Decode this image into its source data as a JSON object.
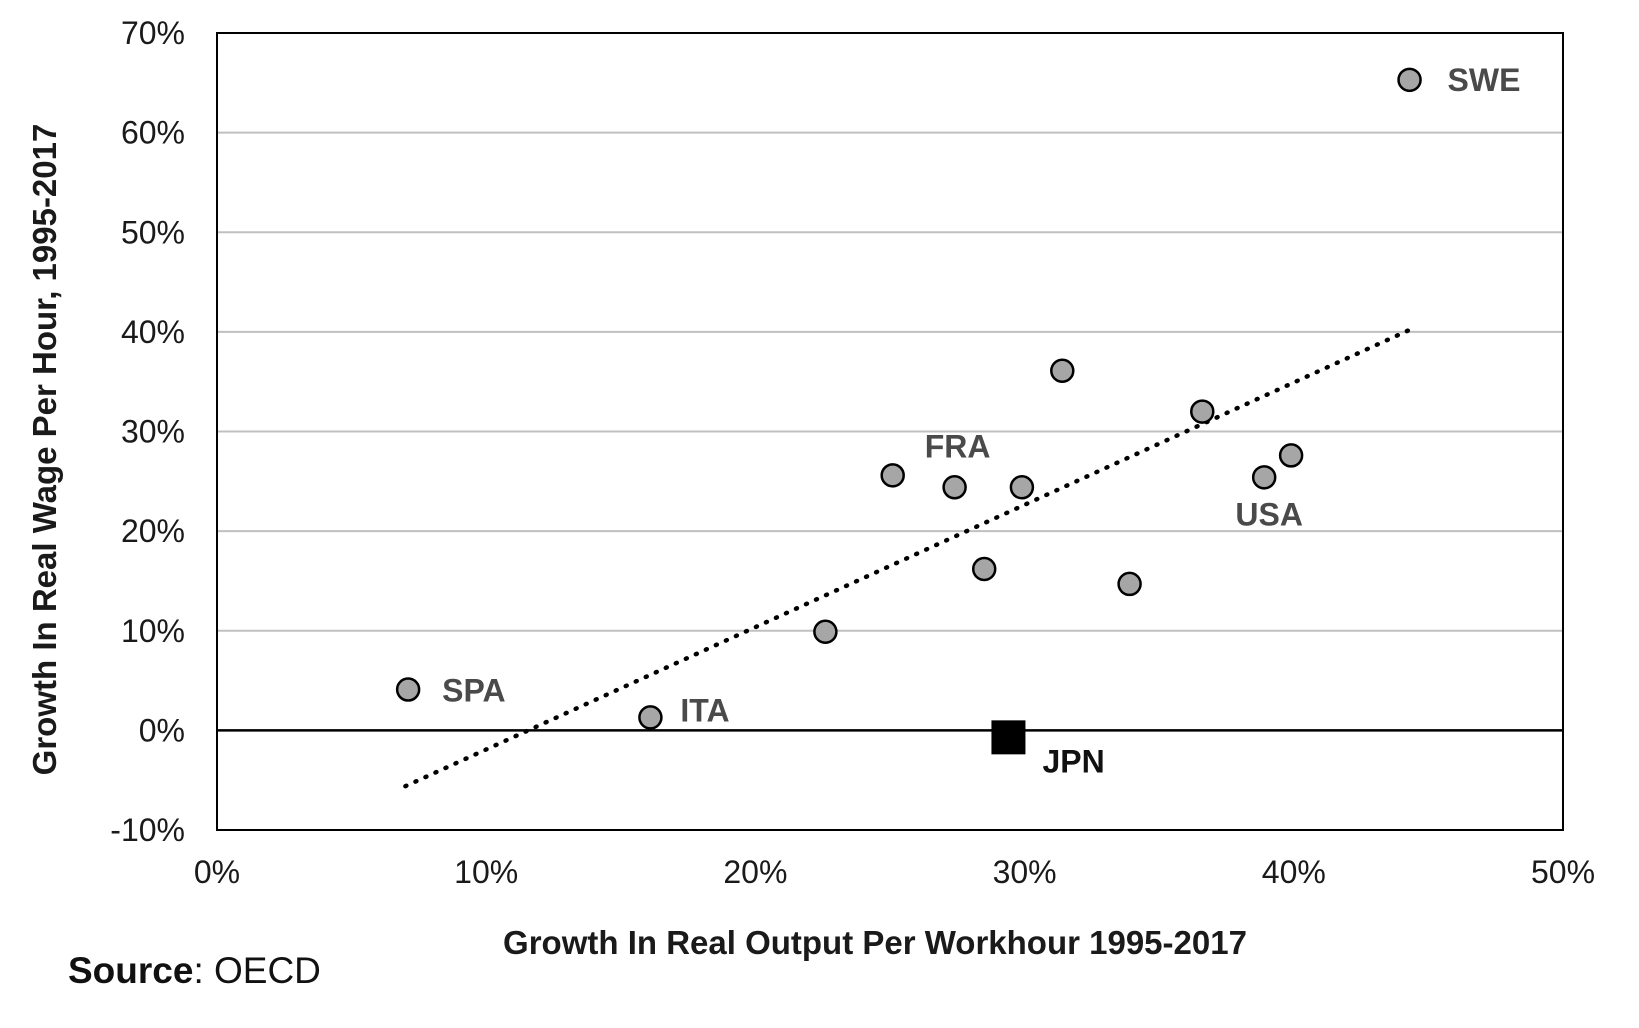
{
  "source": {
    "label": "Source",
    "sep": ":",
    "text": "OECD"
  },
  "chart_data": {
    "type": "scatter",
    "xlabel": "Growth In Real Output Per Workhour 1995-2017",
    "ylabel": "Growth In Real Wage Per Hour, 1995-2017",
    "xlim": [
      0,
      50
    ],
    "ylim": [
      -10,
      70
    ],
    "x_ticks": [
      "0%",
      "10%",
      "20%",
      "30%",
      "40%",
      "50%"
    ],
    "y_ticks": [
      "-10%",
      "0%",
      "10%",
      "20%",
      "30%",
      "40%",
      "50%",
      "60%",
      "70%"
    ],
    "grid": "horizontal",
    "colors": {
      "point_fill": "#a6a6a6",
      "point_stroke": "#000000",
      "highlight": "#000000",
      "grid": "#c0c0c0",
      "label": "#4a4a4a"
    },
    "points": [
      {
        "label": "SPA",
        "x": 7.1,
        "y": 4.1
      },
      {
        "label": "ITA",
        "x": 16.1,
        "y": 1.3
      },
      {
        "label": "",
        "x": 22.6,
        "y": 9.9
      },
      {
        "label": "",
        "x": 25.1,
        "y": 25.6
      },
      {
        "label": "FRA",
        "x": 27.4,
        "y": 24.4
      },
      {
        "label": "",
        "x": 28.5,
        "y": 16.2
      },
      {
        "label": "",
        "x": 29.9,
        "y": 24.4
      },
      {
        "label": "",
        "x": 31.4,
        "y": 36.1
      },
      {
        "label": "",
        "x": 33.9,
        "y": 14.7
      },
      {
        "label": "",
        "x": 36.6,
        "y": 32.0
      },
      {
        "label": "USA",
        "x": 38.9,
        "y": 25.4
      },
      {
        "label": "",
        "x": 39.9,
        "y": 27.6
      },
      {
        "label": "SWE",
        "x": 44.3,
        "y": 65.3
      }
    ],
    "highlight": {
      "label": "JPN",
      "x": 29.4,
      "y": -0.7
    },
    "trendline": {
      "style": "dotted",
      "x": [
        7.0,
        44.3
      ],
      "y": [
        -5.6,
        40.2
      ]
    }
  }
}
